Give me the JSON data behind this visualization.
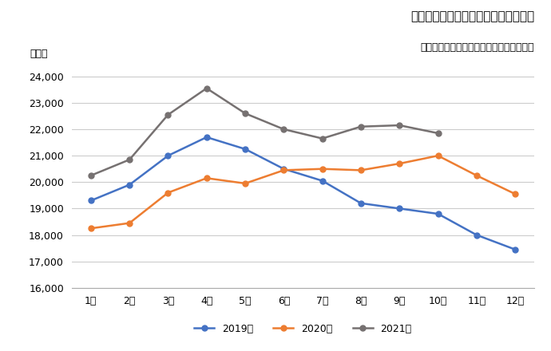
{
  "title": "建設技能工の有効求職者数の月別推移",
  "subtitle": "厚生労働省「一般職業紹介状況」より作成",
  "ylabel": "（人）",
  "months": [
    "1月",
    "2月",
    "3月",
    "4月",
    "5月",
    "6月",
    "7月",
    "8月",
    "9月",
    "10月",
    "11月",
    "12月"
  ],
  "series": [
    {
      "label": "2019年",
      "color": "#4472C4",
      "values": [
        19300,
        19900,
        21000,
        21700,
        21250,
        20500,
        20050,
        19200,
        19000,
        18800,
        18000,
        17450
      ]
    },
    {
      "label": "2020年",
      "color": "#ED7D31",
      "values": [
        18250,
        18450,
        19600,
        20150,
        19950,
        20450,
        20500,
        20450,
        20700,
        21000,
        20250,
        19550
      ]
    },
    {
      "label": "2021年",
      "color": "#767171",
      "values": [
        20250,
        20850,
        22550,
        23550,
        22600,
        22000,
        21650,
        22100,
        22150,
        21850,
        null,
        null
      ]
    }
  ],
  "ylim": [
    16000,
    24500
  ],
  "yticks": [
    16000,
    17000,
    18000,
    19000,
    20000,
    21000,
    22000,
    23000,
    24000
  ],
  "background_color": "#FFFFFF",
  "grid_color": "#CCCCCC",
  "title_fontsize": 11,
  "subtitle_fontsize": 9,
  "axis_fontsize": 9,
  "legend_fontsize": 9,
  "marker_size": 5,
  "line_width": 1.8
}
